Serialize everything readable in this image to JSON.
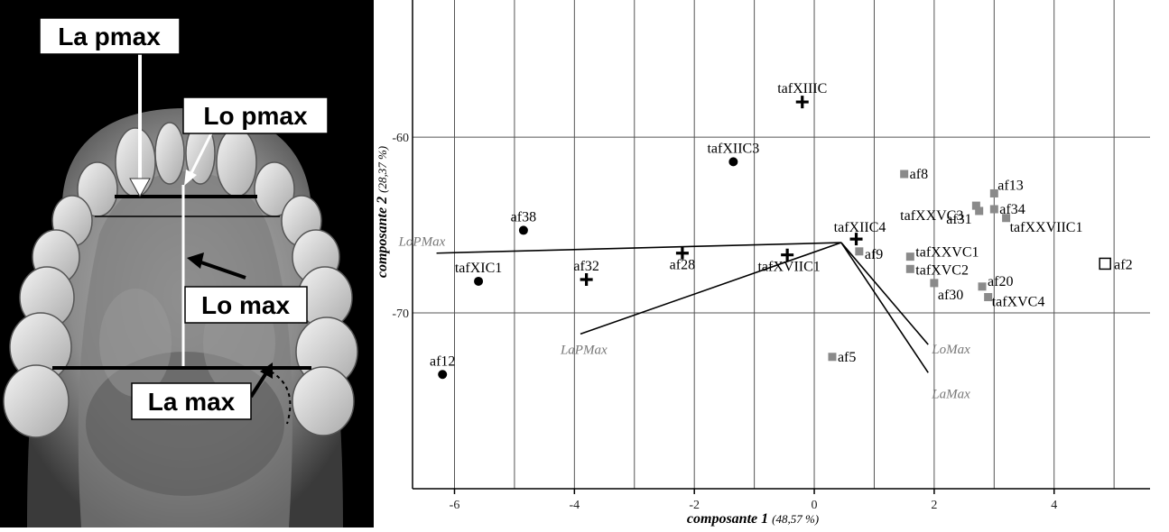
{
  "photo": {
    "labels": {
      "la_pmax": "La pmax",
      "lo_pmax": "Lo pmax",
      "lo_max": "Lo max",
      "la_max": "La max"
    }
  },
  "chart_data": {
    "type": "scatter",
    "xlabel": "composante 1",
    "xlabel_pct": "(48,57 %)",
    "ylabel": "composante 2",
    "ylabel_pct": "(28,37 %)",
    "xlim": [
      -6.7,
      5.6
    ],
    "ylim": [
      -80,
      -52.2
    ],
    "xticks": [
      -6,
      -4,
      -2,
      0,
      2,
      4
    ],
    "yticks": [
      -60,
      -70
    ],
    "grid": true,
    "points": [
      {
        "label": "tafXIIIC",
        "x": -0.2,
        "y": -58.0,
        "marker": "plus"
      },
      {
        "label": "tafXIIC3",
        "x": -1.35,
        "y": -61.4,
        "marker": "circle"
      },
      {
        "label": "af38",
        "x": -4.85,
        "y": -65.3,
        "marker": "circle"
      },
      {
        "label": "tafXIC1",
        "x": -5.6,
        "y": -68.2,
        "marker": "circle"
      },
      {
        "label": "af32",
        "x": -3.8,
        "y": -68.1,
        "marker": "plus"
      },
      {
        "label": "af28",
        "x": -2.2,
        "y": -66.6,
        "marker": "plus"
      },
      {
        "label": "tafXVIIC1",
        "x": -0.45,
        "y": -66.7,
        "marker": "plus"
      },
      {
        "label": "tafXIIC4",
        "x": 0.7,
        "y": -65.8,
        "marker": "plus"
      },
      {
        "label": "af12",
        "x": -6.2,
        "y": -73.5,
        "marker": "circle"
      },
      {
        "label": "af9",
        "x": 0.75,
        "y": -66.5,
        "marker": "square"
      },
      {
        "label": "af5",
        "x": 0.3,
        "y": -72.5,
        "marker": "square"
      },
      {
        "label": "af8",
        "x": 1.5,
        "y": -62.1,
        "marker": "square"
      },
      {
        "label": "tafXXVC3",
        "x": 2.7,
        "y": -63.9,
        "marker": "square"
      },
      {
        "label": "af13",
        "x": 3.0,
        "y": -63.2,
        "marker": "square"
      },
      {
        "label": "af34",
        "x": 3.0,
        "y": -64.1,
        "marker": "square"
      },
      {
        "label": "af31",
        "x": 2.75,
        "y": -64.2,
        "marker": "square"
      },
      {
        "label": "tafXXVIIC1",
        "x": 3.2,
        "y": -64.6,
        "marker": "square"
      },
      {
        "label": "tafXXVC1",
        "x": 1.6,
        "y": -66.8,
        "marker": "square"
      },
      {
        "label": "tafXVC2",
        "x": 1.6,
        "y": -67.5,
        "marker": "square"
      },
      {
        "label": "af30",
        "x": 2.0,
        "y": -68.3,
        "marker": "square"
      },
      {
        "label": "af20",
        "x": 2.8,
        "y": -68.5,
        "marker": "square"
      },
      {
        "label": "tafXVC4",
        "x": 2.9,
        "y": -69.1,
        "marker": "square"
      },
      {
        "label": "af2",
        "x": 4.85,
        "y": -67.2,
        "marker": "open-square"
      }
    ],
    "vectors": {
      "origin": [
        0.45,
        -66.0
      ],
      "items": [
        {
          "label": "LoPMax",
          "x": -6.3,
          "y": -66.6
        },
        {
          "label": "LaPMax",
          "x": -3.9,
          "y": -71.2
        },
        {
          "label": "LoMax",
          "x": 1.9,
          "y": -71.8
        },
        {
          "label": "LaMax",
          "x": 1.9,
          "y": -73.4
        }
      ]
    }
  }
}
